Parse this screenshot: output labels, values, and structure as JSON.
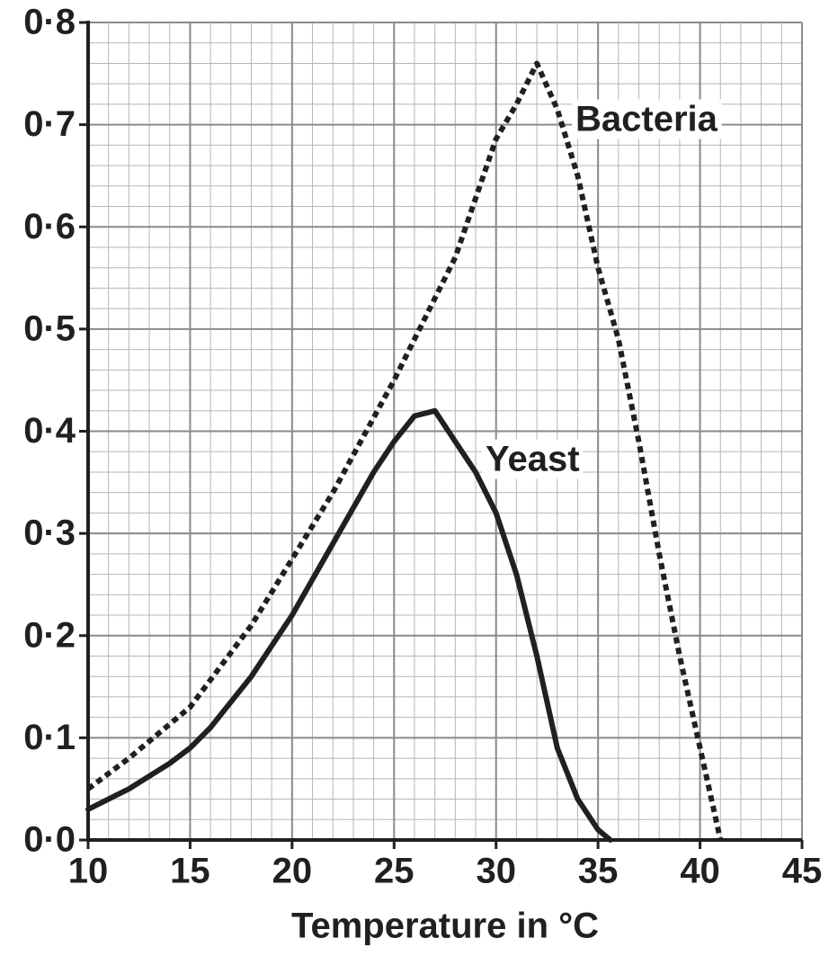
{
  "chart_data": {
    "type": "line",
    "x_label": "Temperature in °C",
    "xlim": [
      10,
      45
    ],
    "xticks": [
      10,
      15,
      20,
      25,
      30,
      35,
      40,
      45
    ],
    "ylim": [
      0,
      0.8
    ],
    "yticks": [
      {
        "value": 0,
        "label": "0·0"
      },
      {
        "value": 0.1,
        "label": "0·1"
      },
      {
        "value": 0.2,
        "label": "0·2"
      },
      {
        "value": 0.3,
        "label": "0·3"
      },
      {
        "value": 0.4,
        "label": "0·4"
      },
      {
        "value": 0.5,
        "label": "0·5"
      },
      {
        "value": 0.6,
        "label": "0·6"
      },
      {
        "value": 0.7,
        "label": "0·7"
      },
      {
        "value": 0.8,
        "label": "0·8"
      }
    ],
    "grid": true,
    "minor_grid": true,
    "series": [
      {
        "name": "Yeast",
        "color": "#231f20",
        "style": "solid",
        "x": [
          10,
          12,
          14,
          15,
          16,
          18,
          20,
          22,
          24,
          25,
          26,
          27,
          28,
          29,
          30,
          31,
          32,
          33,
          34,
          35,
          35.6
        ],
        "values": [
          0.03,
          0.05,
          0.075,
          0.09,
          0.11,
          0.16,
          0.22,
          0.29,
          0.36,
          0.39,
          0.415,
          0.42,
          0.39,
          0.36,
          0.32,
          0.26,
          0.18,
          0.09,
          0.04,
          0.01,
          0
        ]
      },
      {
        "name": "Bacteria",
        "color": "#231f20",
        "style": "dotted",
        "x": [
          10,
          12,
          15,
          18,
          20,
          22,
          25,
          28,
          30,
          31,
          32,
          33,
          34,
          35,
          36,
          37,
          38,
          39,
          40,
          41
        ],
        "values": [
          0.05,
          0.08,
          0.13,
          0.21,
          0.275,
          0.34,
          0.45,
          0.57,
          0.686,
          0.72,
          0.76,
          0.715,
          0.65,
          0.56,
          0.49,
          0.39,
          0.28,
          0.18,
          0.09,
          0
        ]
      }
    ]
  }
}
